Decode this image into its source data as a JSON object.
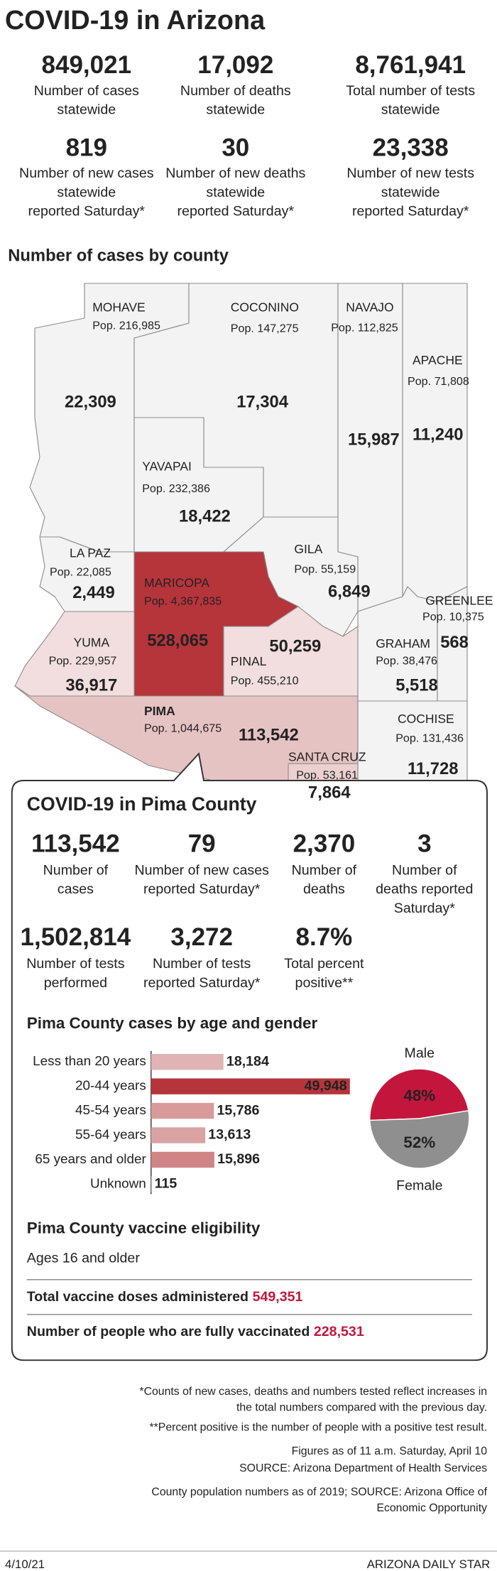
{
  "header": {
    "title": "COVID-19 in Arizona"
  },
  "statewide": [
    {
      "value": "849,021",
      "label": [
        "Number of cases",
        "statewide"
      ]
    },
    {
      "value": "17,092",
      "label": [
        "Number of deaths",
        "statewide"
      ]
    },
    {
      "value": "8,761,941",
      "label": [
        "Total number of tests",
        "statewide"
      ]
    },
    {
      "value": "819",
      "label": [
        "Number of new cases",
        "statewide",
        "reported Saturday*"
      ]
    },
    {
      "value": "30",
      "label": [
        "Number of new deaths",
        "statewide",
        "reported Saturday*"
      ]
    },
    {
      "value": "23,338",
      "label": [
        "Number of new tests",
        "statewide",
        "reported Saturday*"
      ]
    }
  ],
  "map": {
    "title": "Number of cases by county",
    "counties": [
      {
        "name": "MOHAVE",
        "population": "Pop. 216,985",
        "cases": "22,309"
      },
      {
        "name": "COCONINO",
        "population": "Pop. 147,275",
        "cases": "17,304"
      },
      {
        "name": "NAVAJO",
        "population": "Pop. 112,825",
        "cases": "15,987"
      },
      {
        "name": "APACHE",
        "population": "Pop. 71,808",
        "cases": "11,240"
      },
      {
        "name": "YAVAPAI",
        "population": "Pop. 232,386",
        "cases": "18,422"
      },
      {
        "name": "LA PAZ",
        "population": "Pop. 22,085",
        "cases": "2,449"
      },
      {
        "name": "GILA",
        "population": "Pop. 55,159",
        "cases": "6,849"
      },
      {
        "name": "GREENLEE",
        "population": "Pop. 10,375",
        "cases": "568"
      },
      {
        "name": "MARICOPA",
        "population": "Pop. 4,367,835",
        "cases": "528,065"
      },
      {
        "name": "YUMA",
        "population": "Pop. 229,957",
        "cases": "36,917"
      },
      {
        "name": "PINAL",
        "population": "Pop. 455,210",
        "cases": "50,259"
      },
      {
        "name": "GRAHAM",
        "population": "Pop. 38,476",
        "cases": "5,518"
      },
      {
        "name": "PIMA",
        "population": "Pop. 1,044,675",
        "cases": "113,542"
      },
      {
        "name": "COCHISE",
        "population": "Pop. 131,436",
        "cases": "11,728"
      },
      {
        "name": "SANTA CRUZ",
        "population": "Pop. 53,161",
        "cases": "7,864"
      }
    ]
  },
  "pima": {
    "title": "COVID-19 in Pima County",
    "stats": [
      {
        "value": "113,542",
        "label": [
          "Number of",
          "cases"
        ]
      },
      {
        "value": "79",
        "label": [
          "Number of new cases",
          "reported Saturday*"
        ]
      },
      {
        "value": "2,370",
        "label": [
          "Number of",
          "deaths"
        ]
      },
      {
        "value": "3",
        "label": [
          "Number of",
          "deaths reported",
          "Saturday*"
        ]
      },
      {
        "value": "1,502,814",
        "label": [
          "Number of tests",
          "performed"
        ]
      },
      {
        "value": "3,272",
        "label": [
          "Number of tests",
          "reported Saturday*"
        ]
      },
      {
        "value": "8.7%",
        "label": [
          "Total percent",
          "positive**"
        ]
      }
    ],
    "age_chart": {
      "type": "bar",
      "title": "Pima County cases by age and gender",
      "categories": [
        "Less than 20 years",
        "20-44 years",
        "45-54 years",
        "55-64 years",
        "65 years and older",
        "Unknown"
      ],
      "values": [
        18184,
        49948,
        15786,
        13613,
        15896,
        115
      ],
      "value_labels": [
        "18,184",
        "49,948",
        "15,786",
        "13,613",
        "15,896",
        "115"
      ],
      "colors": [
        "#e0b4b4",
        "#b5353b",
        "#d99a9a",
        "#d9a3a3",
        "#cf8486",
        "#cf8486"
      ]
    },
    "gender_chart": {
      "type": "pie",
      "categories": [
        "Male",
        "Female"
      ],
      "values": [
        48,
        52
      ],
      "value_labels": [
        "48%",
        "52%"
      ],
      "colors": [
        "#c4163c",
        "#8f8f8f"
      ]
    },
    "vaccine": {
      "title": "Pima County vaccine eligibility",
      "eligibility": "Ages 16 and older",
      "lines": [
        {
          "label": "Total vaccine doses administered",
          "value": "549,351"
        },
        {
          "label": "Number of people who are fully vaccinated",
          "value": "228,531"
        }
      ]
    }
  },
  "footnotes": [
    [
      "*Counts of new cases, deaths and numbers tested reflect increases in",
      "the total numbers compared with the previous day."
    ],
    [
      "**Percent positive is the number of people with a positive test result."
    ],
    [
      "Figures as of 11 a.m. Saturday, April 10"
    ],
    [
      "SOURCE: Arizona Department of Health Services"
    ],
    [
      "County population numbers as of 2019; SOURCE: Arizona Office of",
      "Economic Opportunity"
    ]
  ],
  "footer": {
    "date": "4/10/21",
    "publisher": "ARIZONA DAILY STAR"
  }
}
